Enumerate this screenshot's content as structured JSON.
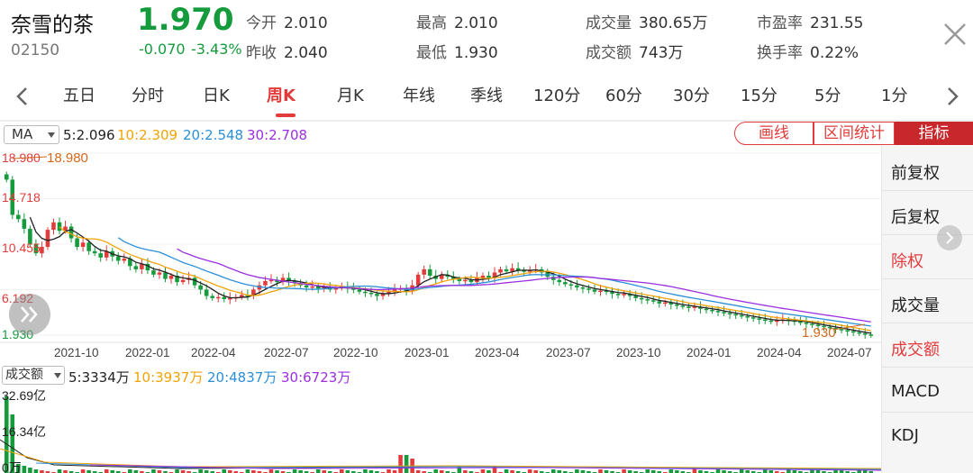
{
  "stock": {
    "name": "奈雪的茶",
    "code": "02150",
    "price": "1.970",
    "change": "-0.070",
    "change_pct": "-3.43%",
    "stats": [
      {
        "label": "今开",
        "value": "2.010"
      },
      {
        "label": "昨收",
        "value": "2.040"
      },
      {
        "label": "最高",
        "value": "2.010"
      },
      {
        "label": "最低",
        "value": "1.930"
      },
      {
        "label": "成交量",
        "value": "380.65万"
      },
      {
        "label": "成交额",
        "value": "743万"
      },
      {
        "label": "市盈率",
        "value": "231.55"
      },
      {
        "label": "换手率",
        "value": "0.22%"
      }
    ]
  },
  "tabs": [
    "五日",
    "分时",
    "日K",
    "周K",
    "月K",
    "年线",
    "季线",
    "120分",
    "60分",
    "30分",
    "15分",
    "5分",
    "1分"
  ],
  "active_tab": "周K",
  "ma": {
    "selector": "MA",
    "values": [
      "5:2.096",
      "10:2.309",
      "20:2.548",
      "30:2.708"
    ],
    "colors": [
      "#222222",
      "#f0a30a",
      "#2b8fd8",
      "#9b2fe0"
    ]
  },
  "tools": {
    "draw": "画线",
    "range_stats": "区间统计",
    "indicator": "指标"
  },
  "right_panel": [
    "前复权",
    "后复权",
    "除权",
    "成交量",
    "成交额",
    "MACD",
    "KDJ"
  ],
  "right_panel_active": [
    "除权",
    "成交额"
  ],
  "volume": {
    "selector": "成交额",
    "values": [
      "5:3334万",
      "10:3937万",
      "20:4837万",
      "30:6723万"
    ],
    "y_labels": [
      "32.69亿",
      "16.34亿",
      "0万"
    ]
  },
  "colors": {
    "up": "#e23b3b",
    "down": "#159b3c",
    "accent": "#c8282c"
  },
  "chart_data": {
    "type": "candlestick",
    "x_labels": [
      "2021-10",
      "2022-01",
      "2022-04",
      "2022-07",
      "2022-10",
      "2023-01",
      "2023-04",
      "2023-07",
      "2023-10",
      "2024-01",
      "2024-04",
      "2024-07"
    ],
    "y_labels": [
      "18.980",
      "14.718",
      "10.455",
      "6.192",
      "1.930"
    ],
    "ylim": [
      1.93,
      18.98
    ],
    "max_marker": "18.980",
    "min_marker": "1.930",
    "close_series": [
      16.5,
      13.2,
      12.8,
      11.9,
      10.5,
      9.6,
      10.2,
      11.8,
      12.5,
      11.7,
      12.1,
      11.0,
      10.2,
      10.6,
      9.8,
      9.6,
      9.2,
      9.8,
      9.3,
      8.9,
      9.1,
      8.4,
      8.1,
      8.6,
      8.0,
      7.6,
      7.8,
      7.2,
      7.5,
      6.9,
      7.1,
      7.3,
      6.6,
      6.2,
      5.6,
      5.4,
      5.5,
      5.3,
      5.4,
      5.5,
      5.7,
      5.6,
      6.2,
      6.6,
      7.0,
      7.1,
      6.9,
      7.3,
      7.0,
      6.8,
      6.6,
      6.4,
      6.5,
      6.3,
      6.4,
      6.2,
      6.4,
      6.5,
      6.3,
      6.2,
      6.0,
      5.9,
      5.8,
      5.6,
      5.8,
      6.0,
      6.2,
      6.3,
      6.1,
      6.6,
      7.6,
      8.1,
      7.5,
      7.2,
      7.6,
      7.4,
      7.2,
      7.0,
      7.1,
      6.9,
      7.3,
      7.5,
      7.3,
      7.8,
      8.1,
      7.9,
      8.2,
      8.0,
      7.9,
      8.0,
      8.1,
      7.8,
      7.4,
      7.1,
      6.9,
      6.7,
      6.6,
      6.4,
      6.3,
      6.2,
      6.0,
      6.1,
      6.0,
      5.8,
      5.7,
      5.8,
      5.6,
      5.4,
      5.3,
      5.2,
      5.1,
      4.9,
      5.0,
      4.8,
      4.7,
      4.6,
      4.5,
      4.6,
      4.4,
      4.3,
      4.2,
      4.1,
      4.0,
      3.9,
      3.8,
      3.7,
      3.6,
      3.5,
      3.4,
      3.3,
      3.2,
      3.3,
      3.4,
      3.3,
      3.2,
      3.1,
      3.0,
      2.9,
      2.8,
      2.7,
      2.6,
      2.5,
      2.4,
      2.3,
      2.2,
      2.1,
      2.0,
      1.97
    ],
    "ma5": "2.096",
    "ma10": "2.309",
    "ma20": "2.548",
    "ma30": "2.708"
  }
}
